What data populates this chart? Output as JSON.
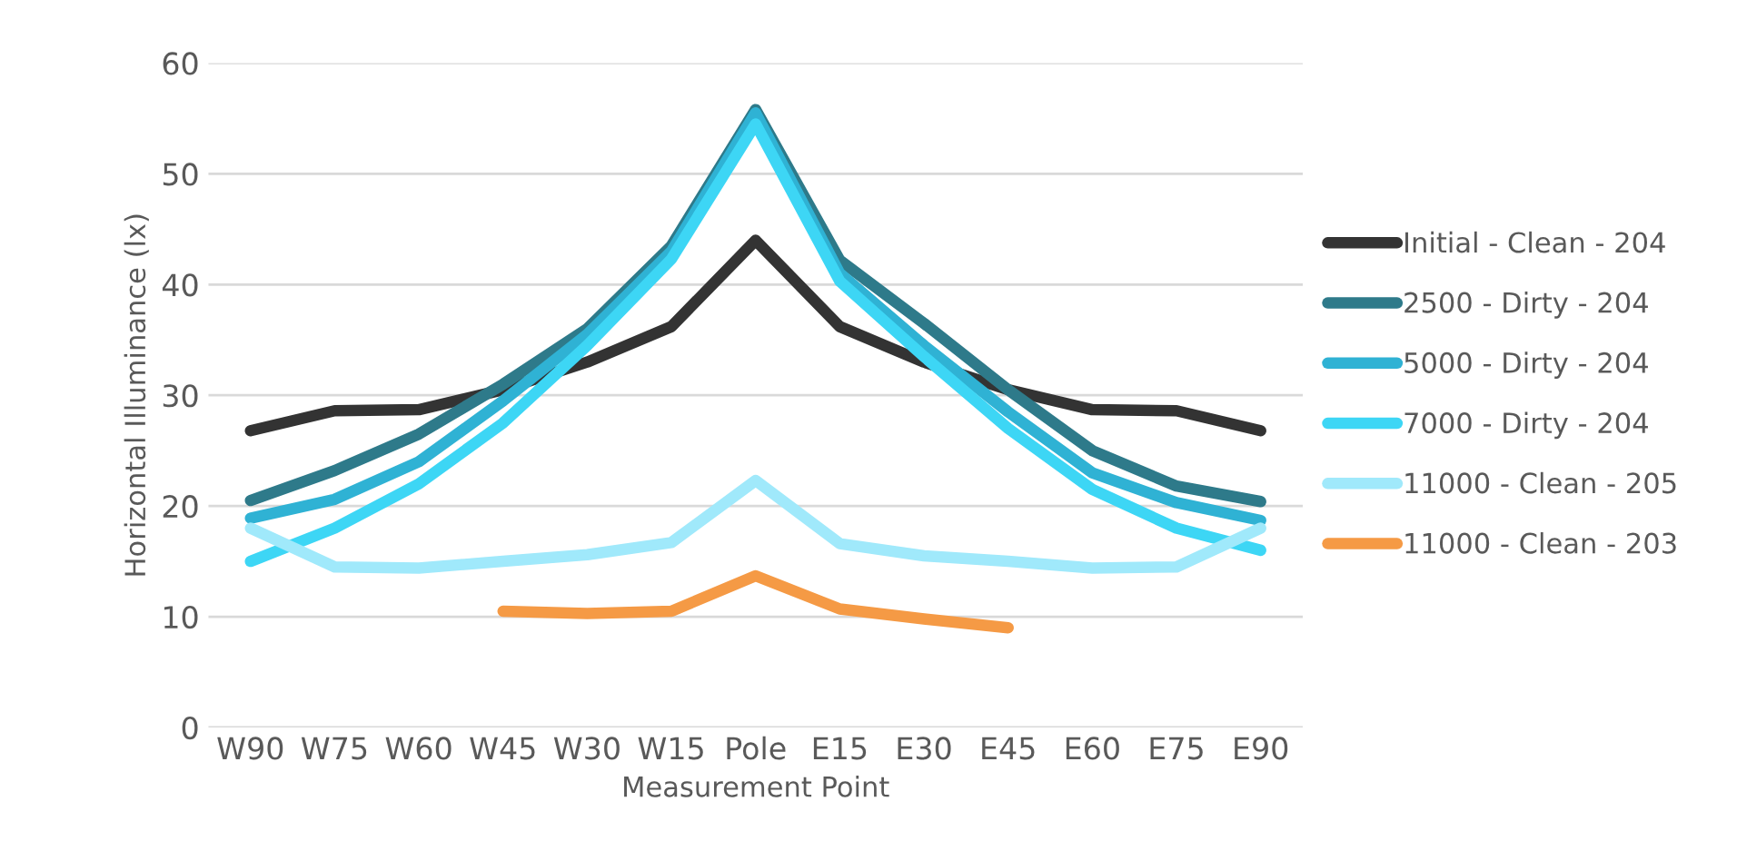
{
  "chart_data": {
    "type": "line",
    "xlabel": "Measurement Point",
    "ylabel": "Horizontal Illuminance (lx)",
    "categories": [
      "W90",
      "W75",
      "W60",
      "W45",
      "W30",
      "W15",
      "Pole",
      "E15",
      "E30",
      "E45",
      "E60",
      "E75",
      "E90"
    ],
    "ylim": [
      0,
      60
    ],
    "yticks": [
      0,
      10,
      20,
      30,
      40,
      50,
      60
    ],
    "grid": "y",
    "legend": "right",
    "marker": "none",
    "line_style": "solid",
    "series": [
      {
        "name": "Initial - Clean - 204",
        "color": "#333333",
        "values": [
          26.8,
          28.6,
          28.7,
          30.5,
          33,
          36.2,
          44,
          36.2,
          33,
          30.5,
          28.7,
          28.6,
          26.8
        ]
      },
      {
        "name": "2500 - Dirty - 204",
        "color": "#2e7a8a",
        "values": [
          20.5,
          23.2,
          26.5,
          31,
          36,
          43.5,
          55.8,
          42.2,
          36.5,
          30.5,
          25,
          21.8,
          20.4
        ]
      },
      {
        "name": "5000 - Dirty - 204",
        "color": "#2fb2d4",
        "values": [
          18.9,
          20.6,
          24,
          29.5,
          35.5,
          43,
          55.5,
          41,
          34.5,
          28.5,
          23,
          20.3,
          18.7
        ]
      },
      {
        "name": "7000 - Dirty - 204",
        "color": "#3dd6f5",
        "values": [
          15,
          18,
          22,
          27.5,
          34.5,
          42.3,
          54.5,
          40.3,
          33.5,
          27,
          21.5,
          18,
          16
        ]
      },
      {
        "name": "11000 - Clean - 205",
        "color": "#a0e9fb",
        "values": [
          18,
          14.5,
          14.4,
          15,
          15.6,
          16.7,
          22.3,
          16.6,
          15.5,
          15,
          14.4,
          14.5,
          18
        ]
      },
      {
        "name": "11000 - Clean - 203",
        "color": "#f59a45",
        "values": [
          null,
          null,
          null,
          10.5,
          10.3,
          10.5,
          13.7,
          10.7,
          9.8,
          9,
          null,
          null,
          null
        ]
      }
    ]
  }
}
